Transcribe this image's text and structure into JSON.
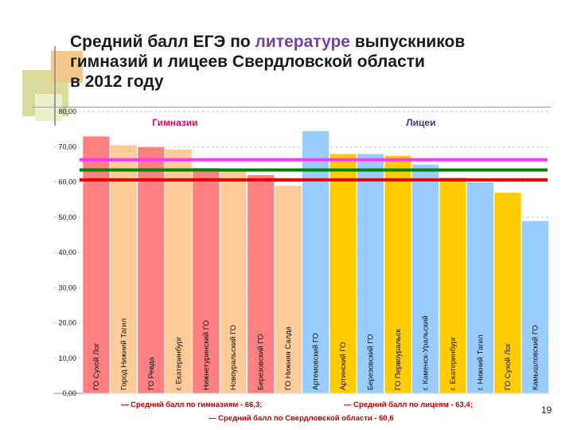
{
  "title": {
    "part1": "Средний балл  ЕГЭ по ",
    "highlight": "литературе",
    "part2": " выпускников",
    "line2": "гимназий и лицеев Свердловской области",
    "line3": "в 2012 году"
  },
  "page_number": "19",
  "chart_data": {
    "type": "bar",
    "title": "Средний балл ЕГЭ по литературе выпускников гимназий и лицеев Свердловской области в 2012 году",
    "ylim": [
      0,
      80
    ],
    "yticks": [
      "0,00",
      "10,00",
      "20,00",
      "30,00",
      "40,00",
      "50,00",
      "60,00",
      "70,00",
      "80,00"
    ],
    "groups": [
      {
        "name": "Гимназии",
        "color": "#d1106a"
      },
      {
        "name": "Лицеи",
        "color": "#3a3a8a"
      }
    ],
    "bars": [
      {
        "label": "ГО Сухой Лог",
        "value": 73,
        "group": 0,
        "color": "#ff8080"
      },
      {
        "label": "Город Нижний Тагил",
        "value": 70.5,
        "group": 0,
        "color": "#ffcc99"
      },
      {
        "label": "ГО Ревда",
        "value": 70,
        "group": 0,
        "color": "#ff8080"
      },
      {
        "label": "г. Екатеринбург",
        "value": 69.3,
        "group": 0,
        "color": "#ffcc99"
      },
      {
        "label": "Нижнетуринский ГО",
        "value": 64,
        "group": 0,
        "color": "#ff8080"
      },
      {
        "label": "Новоуральский ГО",
        "value": 63.5,
        "group": 0,
        "color": "#ffcc99"
      },
      {
        "label": "Березовский ГО",
        "value": 62,
        "group": 0,
        "color": "#ff8080"
      },
      {
        "label": "ГО Нижняя Салда",
        "value": 59,
        "group": 0,
        "color": "#ffcc99"
      },
      {
        "label": "Артемовский ГО",
        "value": 74.5,
        "group": 1,
        "color": "#99ccff"
      },
      {
        "label": "Артинский ГО",
        "value": 68,
        "group": 1,
        "color": "#ffcc00"
      },
      {
        "label": "Березовский ГО",
        "value": 68,
        "group": 1,
        "color": "#99ccff"
      },
      {
        "label": "ГО Первоуральск",
        "value": 67.5,
        "group": 1,
        "color": "#ffcc00"
      },
      {
        "label": "г. Каменск-Уральский",
        "value": 65,
        "group": 1,
        "color": "#99ccff"
      },
      {
        "label": "г. Екатеринбург",
        "value": 61.3,
        "group": 1,
        "color": "#ffcc00"
      },
      {
        "label": "г. Нижний Тагил",
        "value": 60,
        "group": 1,
        "color": "#99ccff"
      },
      {
        "label": "ГО Сухой Лог",
        "value": 57,
        "group": 1,
        "color": "#ffcc00"
      },
      {
        "label": "Камышловский ГО",
        "value": 49,
        "group": 1,
        "color": "#99ccff"
      }
    ],
    "reference_lines": [
      {
        "name": "Средний балл по гимназиям",
        "value": 66.3,
        "color": "#ff33ff"
      },
      {
        "name": "Средний балл по лицеям",
        "value": 63.4,
        "color": "#008000"
      },
      {
        "name": "Средний балл по Свердловской области",
        "value": 60.6,
        "color": "#e00000"
      }
    ],
    "annotations": [
      "— Средний балл по гимназиям - 66,3;",
      "— Средний балл по лицеям - 63,4;",
      "— Средний балл по Свердловской области - 60,6"
    ]
  }
}
